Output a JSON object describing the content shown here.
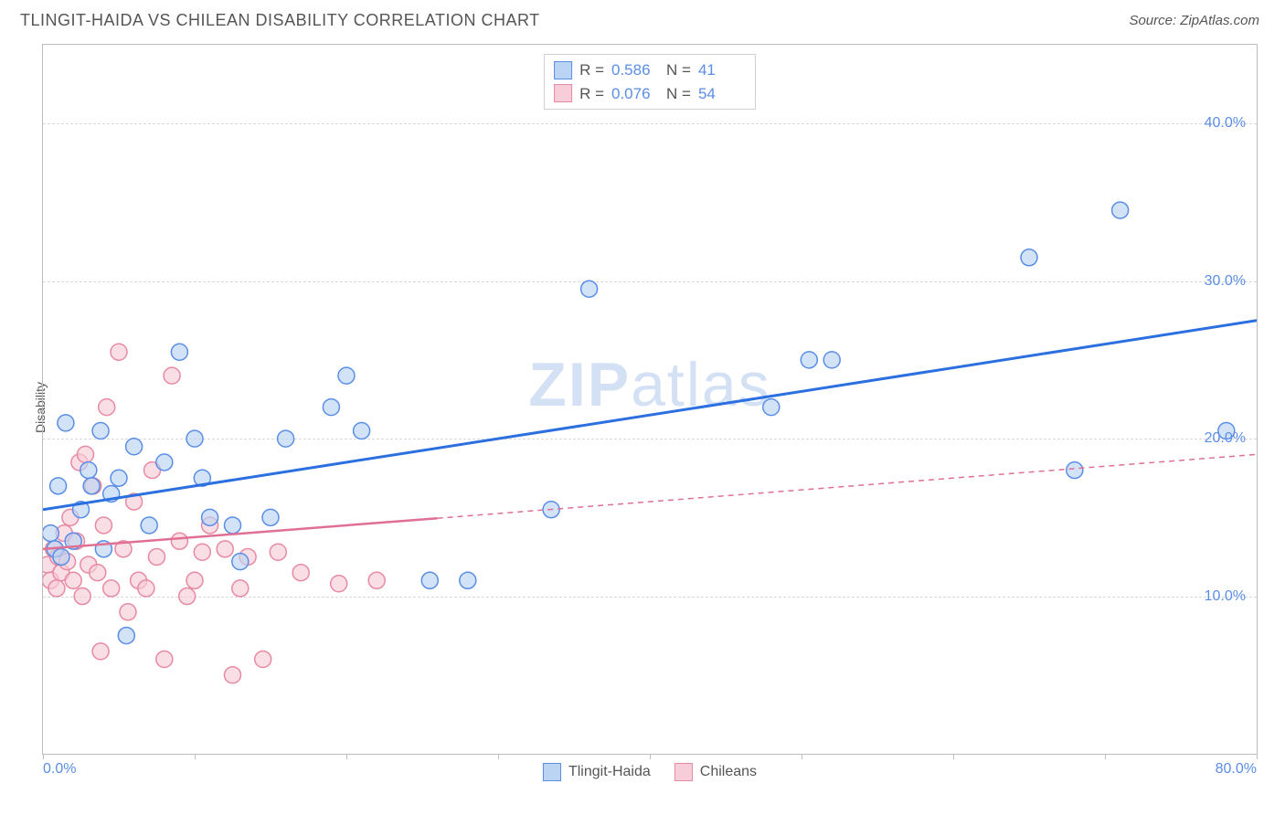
{
  "title": "TLINGIT-HAIDA VS CHILEAN DISABILITY CORRELATION CHART",
  "source": "Source: ZipAtlas.com",
  "y_axis_label": "Disability",
  "watermark": "ZIPatlas",
  "chart": {
    "type": "scatter",
    "xlim": [
      0,
      80
    ],
    "ylim": [
      0,
      45
    ],
    "x_ticks": [
      0,
      10,
      20,
      30,
      40,
      50,
      60,
      70,
      80
    ],
    "x_tick_labels": {
      "0": "0.0%",
      "80": "80.0%"
    },
    "y_ticks": [
      10,
      20,
      30,
      40
    ],
    "y_tick_labels": {
      "10": "10.0%",
      "20": "20.0%",
      "30": "30.0%",
      "40": "40.0%"
    },
    "grid_color": "#d8d8d8",
    "background_color": "#ffffff",
    "axis_color": "#bcbcbc",
    "tick_label_color": "#5a8ee6",
    "marker_radius": 9,
    "marker_stroke_width": 1.5,
    "series": [
      {
        "name": "Tlingit-Haida",
        "fill_color": "#bcd4f3",
        "stroke_color": "#5a8ee6",
        "line_color": "#2b6fe0",
        "line_width": 3,
        "line_dash": "none",
        "R": "0.586",
        "N": "41",
        "trend": {
          "x1": 0,
          "y1": 15.5,
          "x2": 80,
          "y2": 27.5
        },
        "points": [
          [
            0.5,
            14.0
          ],
          [
            0.8,
            13.0
          ],
          [
            1.0,
            17.0
          ],
          [
            1.2,
            12.5
          ],
          [
            1.5,
            21.0
          ],
          [
            2.0,
            13.5
          ],
          [
            2.5,
            15.5
          ],
          [
            3.0,
            18.0
          ],
          [
            3.2,
            17.0
          ],
          [
            3.8,
            20.5
          ],
          [
            4.0,
            13.0
          ],
          [
            4.5,
            16.5
          ],
          [
            5.0,
            17.5
          ],
          [
            5.5,
            7.5
          ],
          [
            6.0,
            19.5
          ],
          [
            7.0,
            14.5
          ],
          [
            8.0,
            18.5
          ],
          [
            9.0,
            25.5
          ],
          [
            10.0,
            20.0
          ],
          [
            10.5,
            17.5
          ],
          [
            11.0,
            15.0
          ],
          [
            12.5,
            14.5
          ],
          [
            13.0,
            12.2
          ],
          [
            15.0,
            15.0
          ],
          [
            16.0,
            20.0
          ],
          [
            19.0,
            22.0
          ],
          [
            20.0,
            24.0
          ],
          [
            21.0,
            20.5
          ],
          [
            25.5,
            11.0
          ],
          [
            28.0,
            11.0
          ],
          [
            33.5,
            15.5
          ],
          [
            36.0,
            29.5
          ],
          [
            48.0,
            22.0
          ],
          [
            50.5,
            25.0
          ],
          [
            52.0,
            25.0
          ],
          [
            65.0,
            31.5
          ],
          [
            68.0,
            18.0
          ],
          [
            71.0,
            34.5
          ],
          [
            78.0,
            20.5
          ]
        ]
      },
      {
        "name": "Chileans",
        "fill_color": "#f7cdd9",
        "stroke_color": "#e88aa3",
        "line_color": "#e07093",
        "line_width": 2.5,
        "line_dash": "6,5",
        "solid_until_x": 26,
        "R": "0.076",
        "N": "54",
        "trend": {
          "x1": 0,
          "y1": 13.0,
          "x2": 80,
          "y2": 19.0
        },
        "points": [
          [
            0.3,
            12.0
          ],
          [
            0.5,
            11.0
          ],
          [
            0.7,
            13.0
          ],
          [
            0.9,
            10.5
          ],
          [
            1.0,
            12.5
          ],
          [
            1.2,
            11.5
          ],
          [
            1.4,
            14.0
          ],
          [
            1.6,
            12.2
          ],
          [
            1.8,
            15.0
          ],
          [
            2.0,
            11.0
          ],
          [
            2.2,
            13.5
          ],
          [
            2.4,
            18.5
          ],
          [
            2.6,
            10.0
          ],
          [
            2.8,
            19.0
          ],
          [
            3.0,
            12.0
          ],
          [
            3.3,
            17.0
          ],
          [
            3.6,
            11.5
          ],
          [
            3.8,
            6.5
          ],
          [
            4.0,
            14.5
          ],
          [
            4.2,
            22.0
          ],
          [
            4.5,
            10.5
          ],
          [
            5.0,
            25.5
          ],
          [
            5.3,
            13.0
          ],
          [
            5.6,
            9.0
          ],
          [
            6.0,
            16.0
          ],
          [
            6.3,
            11.0
          ],
          [
            6.8,
            10.5
          ],
          [
            7.2,
            18.0
          ],
          [
            7.5,
            12.5
          ],
          [
            8.0,
            6.0
          ],
          [
            8.5,
            24.0
          ],
          [
            9.0,
            13.5
          ],
          [
            9.5,
            10.0
          ],
          [
            10.0,
            11.0
          ],
          [
            10.5,
            12.8
          ],
          [
            11.0,
            14.5
          ],
          [
            12.0,
            13.0
          ],
          [
            12.5,
            5.0
          ],
          [
            13.0,
            10.5
          ],
          [
            13.5,
            12.5
          ],
          [
            14.5,
            6.0
          ],
          [
            15.5,
            12.8
          ],
          [
            17.0,
            11.5
          ],
          [
            19.5,
            10.8
          ],
          [
            22.0,
            11.0
          ]
        ]
      }
    ]
  },
  "legend": {
    "items": [
      {
        "label": "Tlingit-Haida",
        "fill": "#bcd4f3",
        "stroke": "#5a8ee6"
      },
      {
        "label": "Chileans",
        "fill": "#f7cdd9",
        "stroke": "#e88aa3"
      }
    ]
  },
  "stats_labels": {
    "R": "R =",
    "N": "N ="
  }
}
